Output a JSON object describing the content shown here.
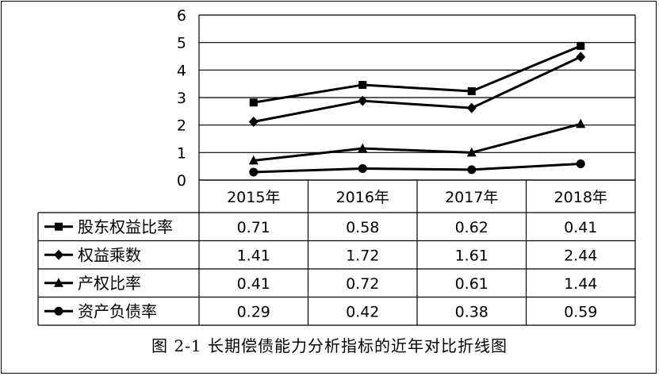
{
  "chart_data": {
    "type": "line",
    "categories": [
      "2015年",
      "2016年",
      "2017年",
      "2018年"
    ],
    "series": [
      {
        "name": "股东权益比率",
        "marker": "square",
        "plotted": [
          2.82,
          3.46,
          3.23,
          4.88
        ],
        "table": [
          "0.71",
          "0.58",
          "0.62",
          "0.41"
        ]
      },
      {
        "name": "权益乘数",
        "marker": "diamond",
        "plotted": [
          2.12,
          2.88,
          2.62,
          4.48
        ],
        "table": [
          "1.41",
          "1.72",
          "1.61",
          "2.44"
        ]
      },
      {
        "name": "产权比率",
        "marker": "triangle",
        "plotted": [
          0.71,
          1.15,
          1.0,
          2.04
        ],
        "table": [
          "0.41",
          "0.72",
          "0.61",
          "1.44"
        ]
      },
      {
        "name": "资产负债率",
        "marker": "circle",
        "plotted": [
          0.29,
          0.42,
          0.38,
          0.59
        ],
        "table": [
          "0.29",
          "0.42",
          "0.38",
          "0.59"
        ]
      }
    ],
    "ylim": [
      0,
      6
    ],
    "yticks": [
      0,
      1,
      2,
      3,
      4,
      5,
      6
    ],
    "grid": true,
    "legend": "data-table",
    "line_color": "#000000"
  },
  "caption": "图 2-1 长期偿债能力分析指标的近年对比折线图"
}
